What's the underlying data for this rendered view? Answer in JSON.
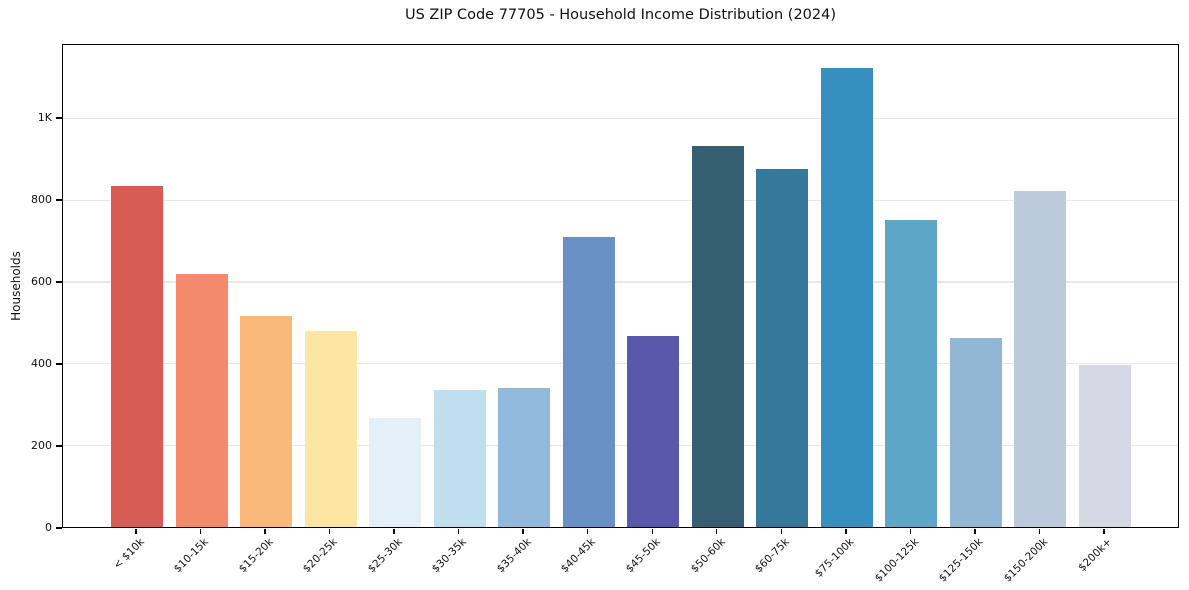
{
  "figure_title": "US ZIP Code 77705 - Household Income Distribution (2024)",
  "chart_data": {
    "type": "bar",
    "title": "US ZIP Code 77705 - Household Income Distribution (2024)",
    "xlabel": "",
    "ylabel": "Households",
    "categories": [
      "< $10k",
      "$10-15k",
      "$15-20k",
      "$20-25k",
      "$25-30k",
      "$30-35k",
      "$35-40k",
      "$40-45k",
      "$45-50k",
      "$50-60k",
      "$60-75k",
      "$75-100k",
      "$100-125k",
      "$125-150k",
      "$150-200k",
      "$200k+"
    ],
    "values": [
      832,
      618,
      514,
      477,
      267,
      333,
      340,
      706,
      467,
      930,
      873,
      1120,
      749,
      462,
      819,
      396
    ],
    "bar_colors": [
      "#d65c54",
      "#f28a6b",
      "#fab978",
      "#fde6a3",
      "#e3f0f7",
      "#bfdfee",
      "#90b9dc",
      "#6890c4",
      "#5a58aa",
      "#355e73",
      "#35789b",
      "#3590c0",
      "#5ea6c8",
      "#91b7d5",
      "#bbcadd",
      "#d6d9e5"
    ],
    "ylim": [
      0,
      1180
    ],
    "yticks": [
      {
        "value": 0,
        "label": "0"
      },
      {
        "value": 200,
        "label": "200"
      },
      {
        "value": 400,
        "label": "400"
      },
      {
        "value": 600,
        "label": "600"
      },
      {
        "value": 800,
        "label": "800"
      },
      {
        "value": 1000,
        "label": "1K"
      }
    ],
    "grid": "horizontal",
    "gridline_color": "#e7e7e7",
    "axis_color": "#000000",
    "background": "#ffffff",
    "legend_position": "none"
  }
}
